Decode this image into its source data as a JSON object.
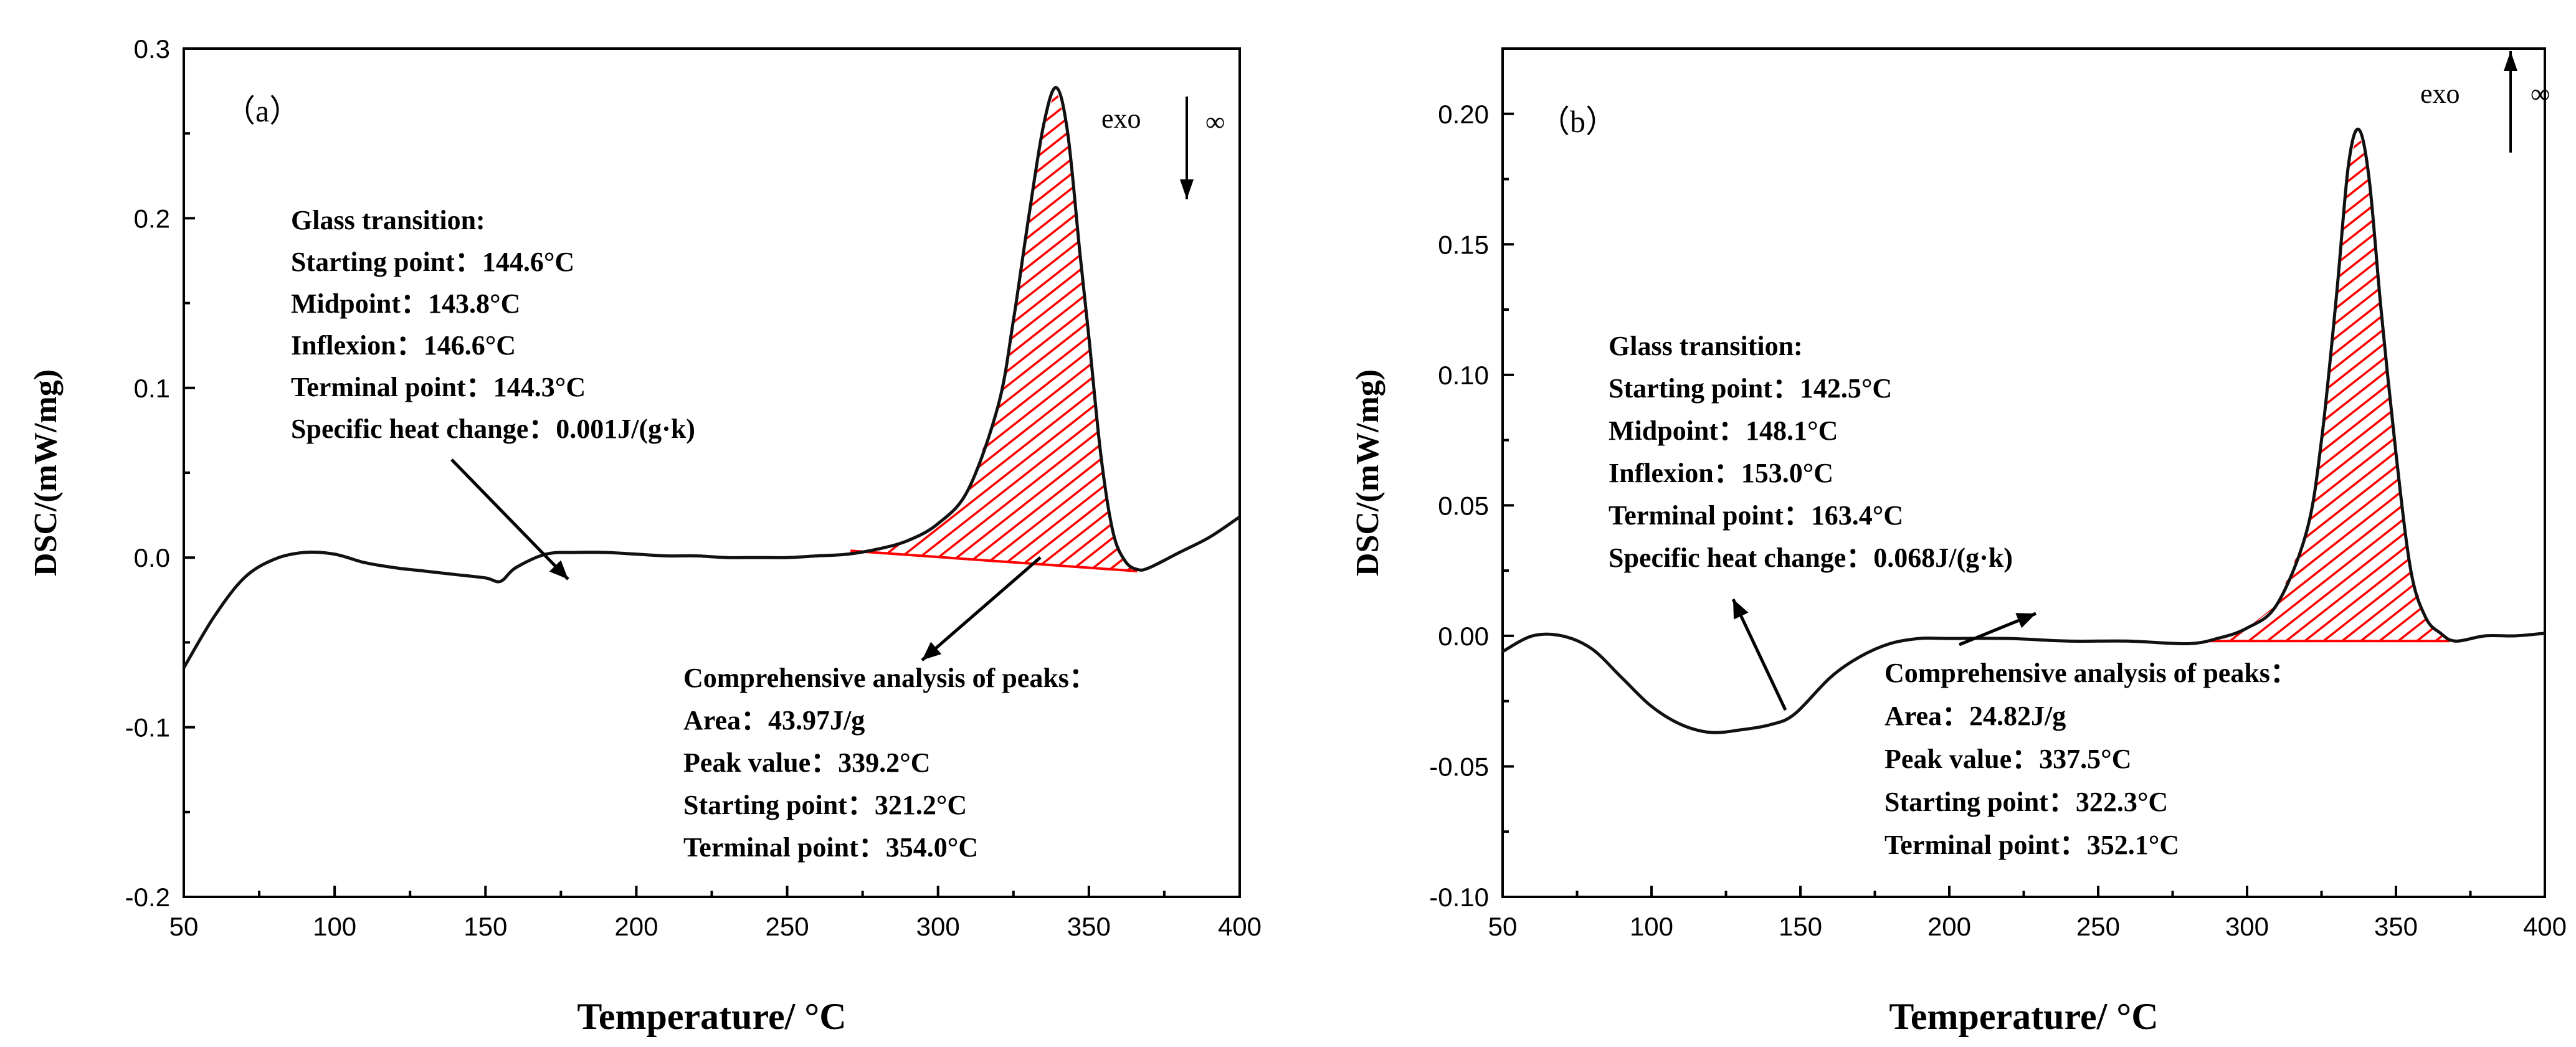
{
  "chart_data": [
    {
      "type": "line",
      "panel_label": "（a）",
      "xlabel": "Temperature/ °C",
      "ylabel": "DSC/(mW/mg)",
      "xlim": [
        50,
        400
      ],
      "ylim": [
        -0.2,
        0.3
      ],
      "x_ticks": [
        50,
        100,
        150,
        200,
        250,
        300,
        350,
        400
      ],
      "x_tick_labels": [
        "50",
        "100",
        "150",
        "200",
        "250",
        "300",
        "350",
        "400"
      ],
      "y_ticks": [
        -0.2,
        -0.1,
        0.0,
        0.1,
        0.2,
        0.3
      ],
      "y_tick_labels": [
        "-0.2",
        "-0.1",
        "0.0",
        "0.1",
        "0.2",
        "0.3"
      ],
      "exo_label": "exo",
      "exo_direction": "down",
      "series": [
        {
          "name": "DSC",
          "x": [
            50,
            60,
            70,
            80,
            90,
            100,
            110,
            120,
            130,
            140,
            150,
            155,
            160,
            170,
            180,
            190,
            200,
            210,
            220,
            230,
            240,
            250,
            260,
            270,
            280,
            290,
            300,
            310,
            320,
            325,
            330,
            335,
            339.2,
            343,
            347,
            350,
            354,
            358,
            362,
            366,
            370,
            380,
            390,
            400
          ],
          "y": [
            -0.065,
            -0.035,
            -0.012,
            -0.001,
            0.003,
            0.002,
            -0.003,
            -0.006,
            -0.008,
            -0.01,
            -0.012,
            -0.014,
            -0.006,
            0.002,
            0.003,
            0.003,
            0.002,
            0.001,
            0.001,
            0.0,
            0.0,
            0.0,
            0.001,
            0.002,
            0.005,
            0.01,
            0.02,
            0.04,
            0.09,
            0.14,
            0.2,
            0.255,
            0.277,
            0.25,
            0.18,
            0.13,
            0.06,
            0.015,
            -0.002,
            -0.007,
            -0.006,
            0.003,
            0.012,
            0.024
          ]
        }
      ],
      "peak_integration": {
        "x_start": 271,
        "y_start": 0.004,
        "x_end": 366,
        "y_end": -0.008
      },
      "annotations": {
        "glass_transition": [
          "Glass transition:",
          "Starting point：144.6°C",
          "Midpoint：143.8°C",
          "Inflexion：146.6°C",
          "Terminal point：144.3°C",
          "Specific heat change：0.001J/(g·k)"
        ],
        "peaks": [
          "Comprehensive analysis of peaks：",
          "Area：43.97J/g",
          "Peak value：339.2°C",
          "Starting point：321.2°C",
          "Terminal point：354.0°C"
        ]
      }
    },
    {
      "type": "line",
      "panel_label": "（b）",
      "xlabel": "Temperature/ °C",
      "ylabel": "DSC/(mW/mg)",
      "xlim": [
        50,
        400
      ],
      "ylim": [
        -0.1,
        0.225
      ],
      "x_ticks": [
        50,
        100,
        150,
        200,
        250,
        300,
        350,
        400
      ],
      "x_tick_labels": [
        "50",
        "100",
        "150",
        "200",
        "250",
        "300",
        "350",
        "400"
      ],
      "y_ticks": [
        -0.1,
        -0.05,
        0.0,
        0.05,
        0.1,
        0.15,
        0.2
      ],
      "y_tick_labels": [
        "-0.10",
        "-0.05",
        "0.00",
        "0.05",
        "0.10",
        "0.15",
        "0.20"
      ],
      "exo_label": "exo",
      "exo_direction": "up",
      "series": [
        {
          "name": "DSC",
          "x": [
            50,
            60,
            70,
            80,
            90,
            100,
            110,
            120,
            130,
            140,
            148,
            160,
            170,
            180,
            190,
            200,
            220,
            240,
            260,
            280,
            290,
            300,
            310,
            320,
            325,
            330,
            334,
            337.5,
            341,
            345,
            350,
            355,
            360,
            365,
            370,
            380,
            390,
            400
          ],
          "y": [
            -0.006,
            0.0,
            0.0,
            -0.005,
            -0.016,
            -0.027,
            -0.034,
            -0.037,
            -0.036,
            -0.034,
            -0.03,
            -0.016,
            -0.008,
            -0.003,
            -0.001,
            -0.001,
            -0.001,
            -0.002,
            -0.002,
            -0.003,
            -0.001,
            0.003,
            0.012,
            0.04,
            0.075,
            0.13,
            0.18,
            0.194,
            0.175,
            0.125,
            0.07,
            0.025,
            0.007,
            0.001,
            -0.002,
            0.0,
            0.0,
            0.001
          ]
        }
      ],
      "peak_integration": {
        "x_start": 287,
        "y_start": -0.002,
        "x_end": 368,
        "y_end": -0.002
      },
      "annotations": {
        "glass_transition": [
          "Glass transition:",
          "Starting point：142.5°C",
          "Midpoint：148.1°C",
          "Inflexion：153.0°C",
          "Terminal point：163.4°C",
          "Specific heat change：0.068J/(g·k)"
        ],
        "peaks": [
          "Comprehensive analysis of peaks：",
          "Area：24.82J/g",
          "Peak value：337.5°C",
          "Starting point：322.3°C",
          "Terminal point：352.1°C"
        ]
      }
    }
  ]
}
